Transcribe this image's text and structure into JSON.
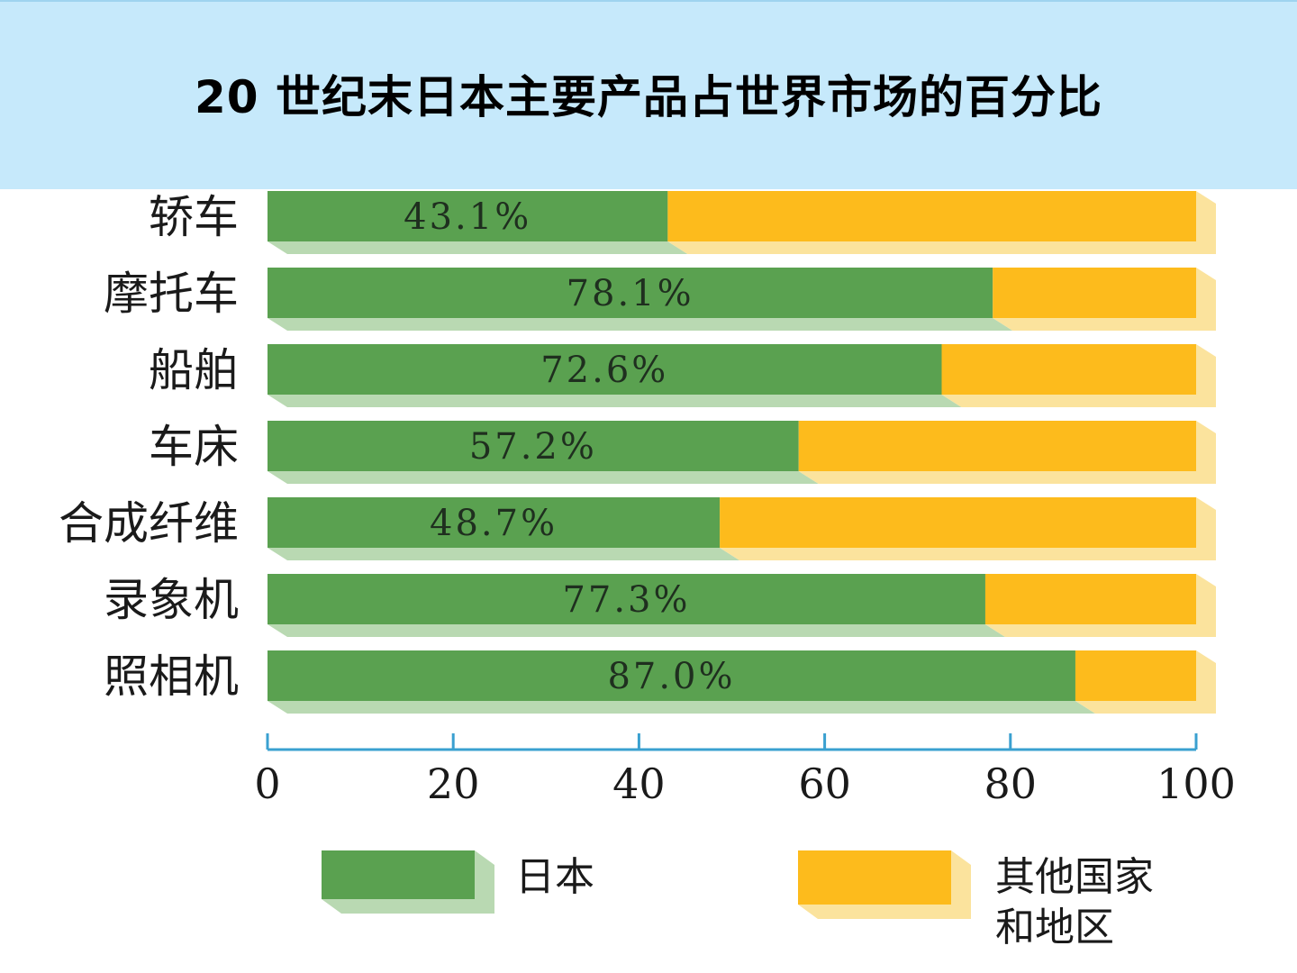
{
  "title": "20 世纪末日本主要产品占世界市场的百分比",
  "colors": {
    "japan": "#5aa150",
    "japan_shadow": "#b9d9b2",
    "others": "#fdbb1c",
    "others_shadow": "#fbe39d",
    "axis": "#3aa0d0",
    "banner": "#c6e9fb"
  },
  "chart_data": {
    "type": "bar",
    "orientation": "horizontal",
    "stacked": true,
    "categories": [
      "轿车",
      "摩托车",
      "船舶",
      "车床",
      "合成纤维",
      "录象机",
      "照相机"
    ],
    "series": [
      {
        "name": "日本",
        "values": [
          43.1,
          78.1,
          72.6,
          57.2,
          48.7,
          77.3,
          87.0
        ]
      },
      {
        "name": "其他国家和地区",
        "values": [
          56.9,
          21.9,
          27.4,
          42.8,
          51.3,
          22.7,
          13.0
        ]
      }
    ],
    "data_labels": [
      "43.1%",
      "78.1%",
      "72.6%",
      "57.2%",
      "48.7%",
      "77.3%",
      "87.0%"
    ],
    "xlim": [
      0,
      100
    ],
    "xticks": [
      "0",
      "20",
      "40",
      "60",
      "80",
      "100"
    ],
    "legend": {
      "placement": "bottom",
      "items": [
        {
          "label": "日本"
        },
        {
          "label_lines": [
            "其他国家",
            "和地区"
          ]
        }
      ]
    }
  }
}
